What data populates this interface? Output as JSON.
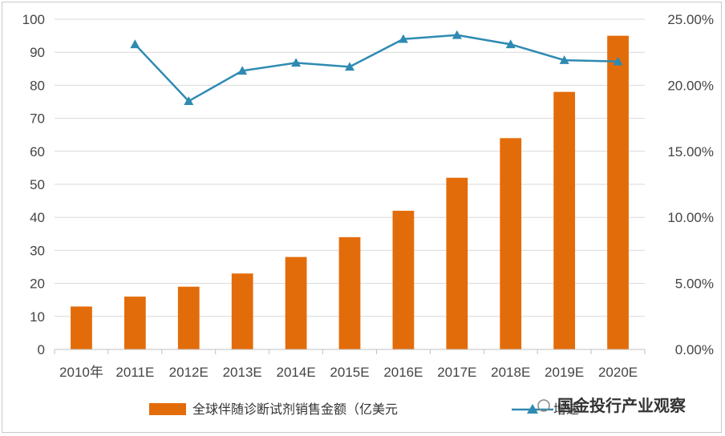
{
  "chart_data": {
    "type": "bar",
    "categories": [
      "2010年",
      "2011E",
      "2012E",
      "2013E",
      "2014E",
      "2015E",
      "2016E",
      "2017E",
      "2018E",
      "2019E",
      "2020E"
    ],
    "series": [
      {
        "name": "全球伴随诊断试剂销售金额（亿美元",
        "type": "bar",
        "axis": "left",
        "color": "#E36C0A",
        "values": [
          13,
          16,
          19,
          23,
          28,
          34,
          42,
          52,
          64,
          78,
          95
        ]
      },
      {
        "name": "增速",
        "type": "line",
        "axis": "right",
        "color": "#2E8AB2",
        "values": [
          null,
          23.1,
          18.8,
          21.1,
          21.7,
          21.4,
          23.5,
          23.8,
          23.1,
          21.9,
          21.8
        ]
      }
    ],
    "ylim_left": [
      0,
      100
    ],
    "ylim_right": [
      0,
      25
    ],
    "left_ticks": [
      "0",
      "10",
      "20",
      "30",
      "40",
      "50",
      "60",
      "70",
      "80",
      "90",
      "100"
    ],
    "right_ticks": [
      "0.00%",
      "5.00%",
      "10.00%",
      "15.00%",
      "20.00%",
      "25.00%"
    ],
    "grid": true,
    "legend_position": "bottom"
  },
  "watermark": "国金投行产业观察"
}
